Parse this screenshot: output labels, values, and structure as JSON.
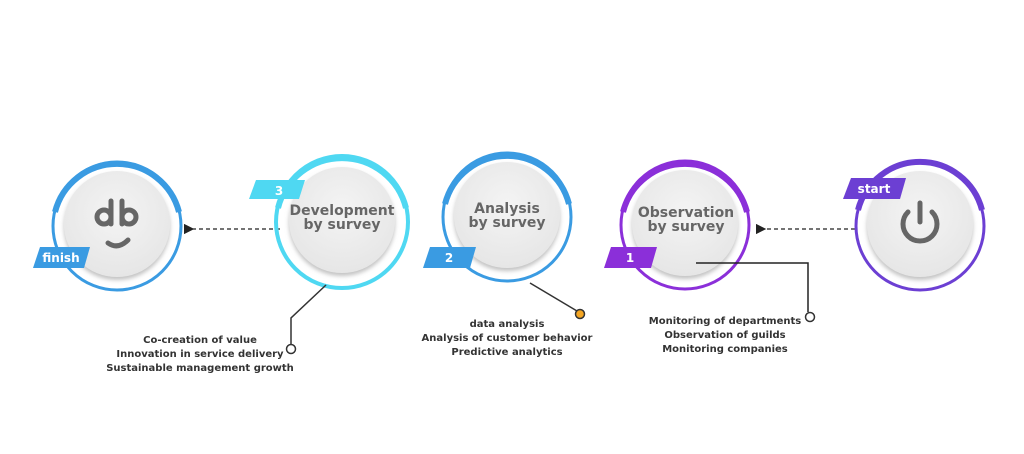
{
  "colors": {
    "blue": "#3a9be2",
    "cyan": "#4fd8f2",
    "purple": "#8b2fd9",
    "violet": "#6c3fd3",
    "orange": "#f5a623",
    "gray_text": "#666666"
  },
  "steps": [
    {
      "badge": "start",
      "icon": "power-icon",
      "color": "violet"
    },
    {
      "badge": "1",
      "title_line1": "Observation",
      "title_line2": "by survey",
      "color": "purple",
      "details": [
        "Monitoring of departments",
        "Observation of guilds",
        "Monitoring companies"
      ]
    },
    {
      "badge": "2",
      "title_line1": "Analysis",
      "title_line2": "by survey",
      "color": "blue",
      "details": [
        "data analysis",
        "Analysis of customer behavior",
        "Predictive analytics"
      ]
    },
    {
      "badge": "3",
      "title_line1": "Development",
      "title_line2": "by survey",
      "color": "cyan",
      "details": [
        "Co-creation of value",
        "Innovation in service delivery",
        "Sustainable management growth"
      ]
    },
    {
      "badge": "finish",
      "icon": "db-smiley-logo",
      "logo_text": "db",
      "color": "blue"
    }
  ]
}
